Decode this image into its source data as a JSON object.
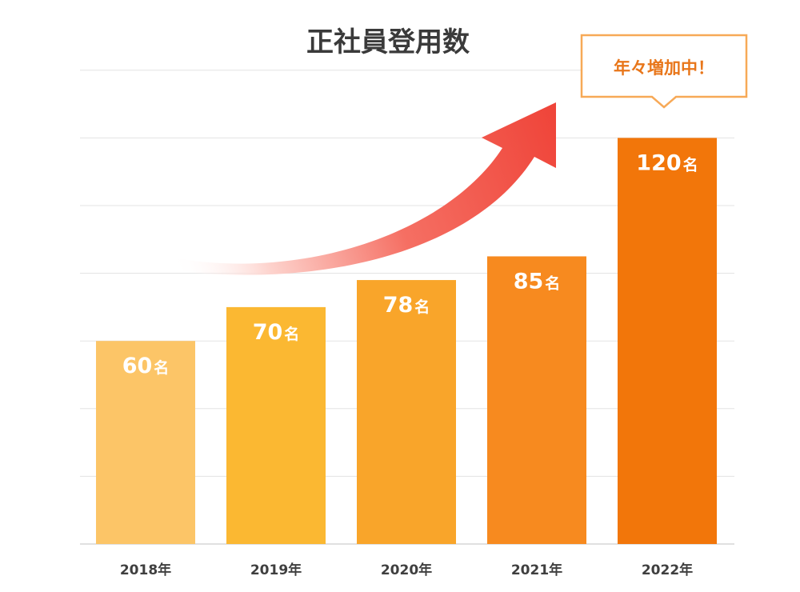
{
  "chart_data": {
    "type": "bar",
    "title": "正社員登用数",
    "categories": [
      "2018年",
      "2019年",
      "2020年",
      "2021年",
      "2022年"
    ],
    "values": [
      60,
      70,
      78,
      85,
      120
    ],
    "unit": "名",
    "ylim": [
      0,
      140
    ],
    "grid": true,
    "annotation": "年々増加中！",
    "colors": {
      "bars": [
        "#fcc567",
        "#fbb832",
        "#f9a52a",
        "#f78a1f",
        "#f2760a"
      ],
      "callout_border": "#f7a957",
      "callout_text": "#e8761a",
      "arrow": "#f04a3f",
      "grid": "#e3e3e3"
    }
  }
}
